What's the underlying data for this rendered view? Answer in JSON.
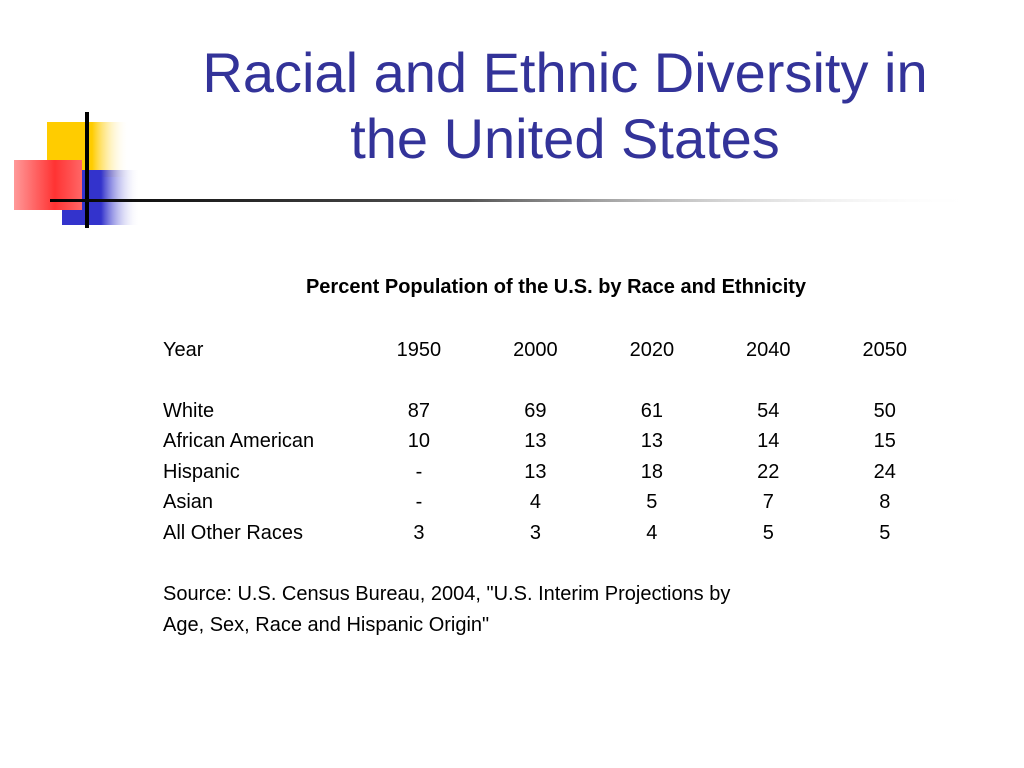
{
  "slide": {
    "title_line1": "Racial and Ethnic Diversity in",
    "title_line2": "the United States"
  },
  "colors": {
    "title": "#333399",
    "deco_yellow": "#FFCC00",
    "deco_red": "#FF3333",
    "deco_blue": "#3333CC"
  },
  "table": {
    "title": "Percent Population of the U.S. by Race and Ethnicity",
    "header": {
      "label": "Year",
      "years": [
        "1950",
        "2000",
        "2020",
        "2040",
        "2050"
      ]
    },
    "rows": [
      {
        "label": "White",
        "values": [
          "87",
          "69",
          "61",
          "54",
          "50"
        ]
      },
      {
        "label": "African American",
        "values": [
          "10",
          "13",
          "13",
          "14",
          "15"
        ]
      },
      {
        "label": "Hispanic",
        "values": [
          "-",
          "13",
          "18",
          "22",
          "24"
        ]
      },
      {
        "label": "Asian",
        "values": [
          "-",
          "4",
          "5",
          "7",
          "8"
        ]
      },
      {
        "label": "All Other Races",
        "values": [
          "3",
          "3",
          "4",
          "5",
          "5"
        ]
      }
    ],
    "source_line1": "Source:  U.S. Census Bureau, 2004, \"U.S. Interim Projections by",
    "source_line2": "Age, Sex, Race and Hispanic Origin\""
  }
}
